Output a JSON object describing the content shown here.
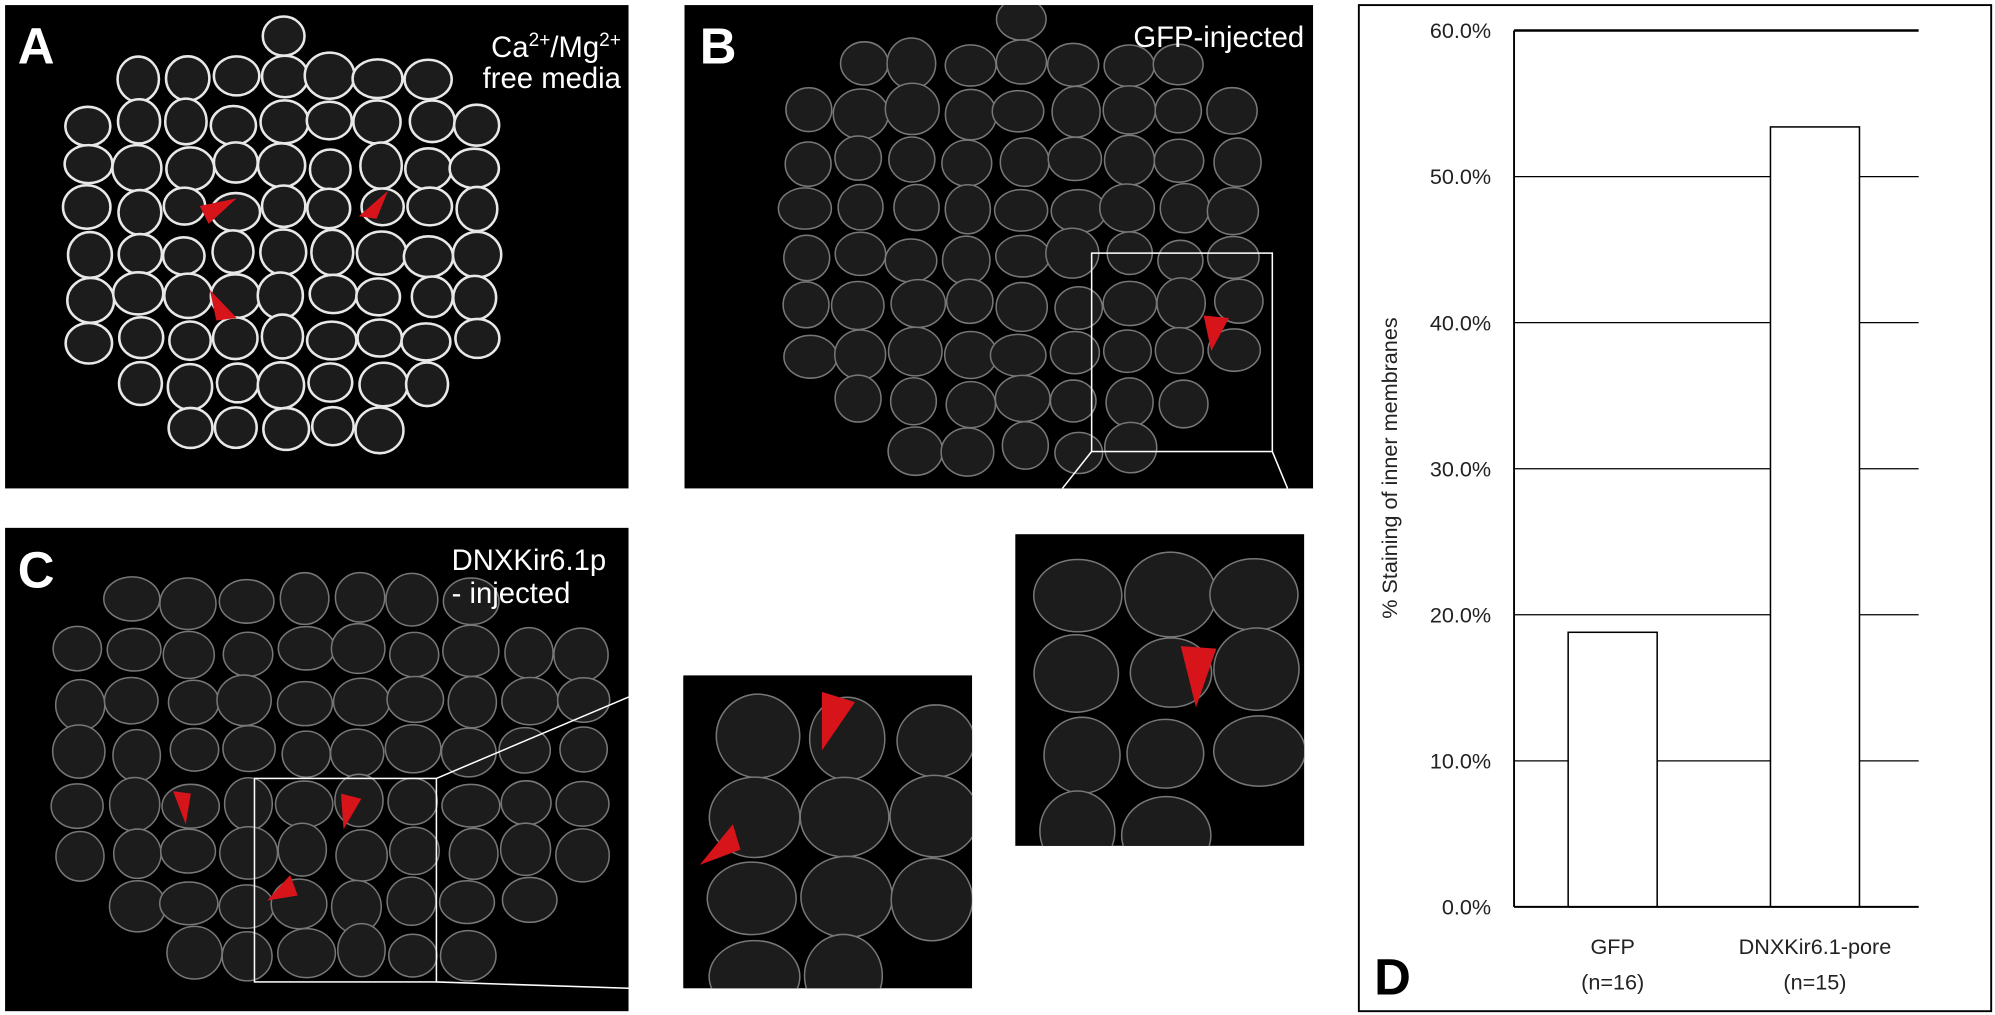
{
  "panels": [
    {
      "label": "A",
      "caption_parts": [
        "Ca",
        "2+",
        "/Mg",
        "2+"
      ],
      "caption_line2": "free media"
    },
    {
      "label": "B",
      "caption": "GFP-injected"
    },
    {
      "label": "C",
      "caption_line1": "DNXKir6.1p",
      "caption_line2": "- injected"
    }
  ],
  "chart_data": {
    "type": "bar",
    "panel_label": "D",
    "y_label": "% Staining of inner membranes",
    "categories": [
      "GFP",
      "DNXKir6.1-pore"
    ],
    "category_notes": [
      "(n=16)",
      "(n=15)"
    ],
    "values": [
      18.8,
      53.4
    ],
    "color": "#ffffff",
    "ylim": [
      0,
      60
    ],
    "yticks": [
      {
        "value": 0,
        "label": "0.0%"
      },
      {
        "value": 10,
        "label": "10.0%"
      },
      {
        "value": 20,
        "label": "20.0%"
      },
      {
        "value": 30,
        "label": "30.0%"
      },
      {
        "value": 40,
        "label": "40.0%"
      },
      {
        "value": 50,
        "label": "50.0%"
      },
      {
        "value": 60,
        "label": "60.0%"
      }
    ],
    "grid": true
  }
}
